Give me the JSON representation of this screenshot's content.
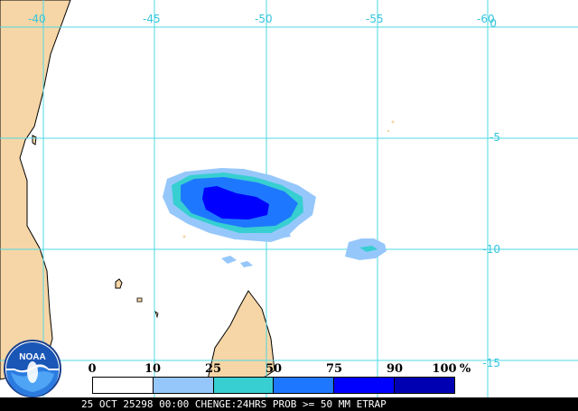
{
  "map": {
    "longitude_labels": [
      "-40",
      "-45",
      "-50",
      "-55",
      "-60"
    ],
    "latitude_labels": [
      "0",
      "-5",
      "-10",
      "-15"
    ],
    "colors": {
      "land": "#f6d6a6",
      "coastline": "#000000",
      "grid": "#4fd8e6",
      "label": "#34c6dc"
    }
  },
  "legend": {
    "thresholds": [
      "0",
      "10",
      "25",
      "50",
      "75",
      "90",
      "100"
    ],
    "unit": "%",
    "colors": [
      "#ffffff",
      "#96c7fb",
      "#37cfd1",
      "#1e78ff",
      "#0000ff",
      "#0000b2"
    ]
  },
  "caption": {
    "text": "25 OCT 25298 00:00 CHENGE:24HRS PROB >= 50 MM ETRAP"
  },
  "logo": {
    "label": "NOAA",
    "icon": "noaa-logo"
  }
}
